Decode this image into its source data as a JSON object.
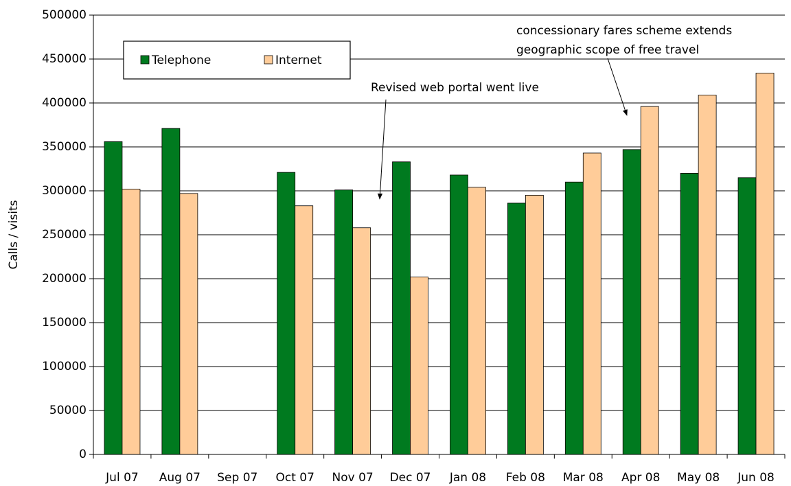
{
  "chart_data": {
    "type": "bar",
    "y_label": "Calls / visits",
    "categories": [
      "Jul 07",
      "Aug 07",
      "Sep 07",
      "Oct 07",
      "Nov 07",
      "Dec 07",
      "Jan 08",
      "Feb 08",
      "Mar 08",
      "Apr 08",
      "May 08",
      "Jun 08"
    ],
    "series": [
      {
        "name": "Telephone",
        "color": "#007a1f",
        "values": [
          356000,
          371000,
          null,
          321000,
          301000,
          333000,
          318000,
          286000,
          310000,
          347000,
          320000,
          315000
        ]
      },
      {
        "name": "Internet",
        "color": "#ffcc99",
        "values": [
          302000,
          297000,
          null,
          283000,
          258000,
          202000,
          304000,
          295000,
          343000,
          396000,
          409000,
          434000
        ]
      }
    ],
    "ylim": [
      0,
      500000
    ],
    "yticks": [
      0,
      50000,
      100000,
      150000,
      200000,
      250000,
      300000,
      350000,
      400000,
      450000,
      500000
    ],
    "grid": true,
    "legend": "top-left",
    "annotations": [
      [
        "Revised web portal went live"
      ],
      [
        "concessionary fares scheme extends",
        "geographic scope of free travel"
      ]
    ]
  }
}
